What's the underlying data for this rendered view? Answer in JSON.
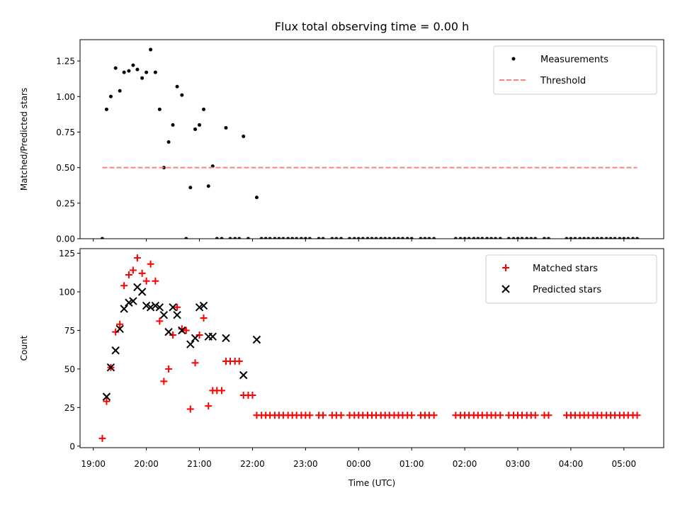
{
  "figure": {
    "title": "Flux total observing time = 0.00 h"
  },
  "colors": {
    "measurement": "#000000",
    "threshold": "#ff7f7f",
    "matched": "#ff0000",
    "predicted": "#000000"
  },
  "chart_data": [
    {
      "type": "scatter",
      "xlabel": "",
      "ylabel": "Matched/Predicted stars",
      "xlim": [
        18.75,
        29.75
      ],
      "ylim": [
        0,
        1.4
      ],
      "yticks": [
        0.0,
        0.25,
        0.5,
        0.75,
        1.0,
        1.25
      ],
      "ytick_labels": [
        "0.00",
        "0.25",
        "0.50",
        "0.75",
        "1.00",
        "1.25"
      ],
      "grid": false,
      "legend_position": "top-right",
      "series": [
        {
          "name": "Measurements",
          "marker": "dot",
          "points": [
            [
              19.17,
              0.0
            ],
            [
              19.25,
              0.91
            ],
            [
              19.33,
              1.0
            ],
            [
              19.42,
              1.2
            ],
            [
              19.5,
              1.04
            ],
            [
              19.58,
              1.17
            ],
            [
              19.67,
              1.18
            ],
            [
              19.75,
              1.22
            ],
            [
              19.83,
              1.19
            ],
            [
              19.92,
              1.13
            ],
            [
              20.0,
              1.17
            ],
            [
              20.08,
              1.33
            ],
            [
              20.17,
              1.17
            ],
            [
              20.25,
              0.91
            ],
            [
              20.33,
              0.5
            ],
            [
              20.42,
              0.68
            ],
            [
              20.5,
              0.8
            ],
            [
              20.58,
              1.07
            ],
            [
              20.67,
              1.01
            ],
            [
              20.75,
              0.0
            ],
            [
              20.83,
              0.36
            ],
            [
              20.92,
              0.77
            ],
            [
              21.0,
              0.8
            ],
            [
              21.08,
              0.91
            ],
            [
              21.17,
              0.37
            ],
            [
              21.25,
              0.51
            ],
            [
              21.33,
              0.0
            ],
            [
              21.42,
              0.0
            ],
            [
              21.5,
              0.78
            ],
            [
              21.58,
              0.0
            ],
            [
              21.67,
              0.0
            ],
            [
              21.75,
              0.0
            ],
            [
              21.83,
              0.72
            ],
            [
              21.92,
              0.0
            ],
            [
              22.08,
              0.29
            ],
            [
              22.17,
              0.0
            ],
            [
              22.25,
              0.0
            ],
            [
              22.33,
              0.0
            ],
            [
              22.42,
              0.0
            ],
            [
              22.5,
              0.0
            ],
            [
              22.58,
              0.0
            ],
            [
              22.67,
              0.0
            ],
            [
              22.75,
              0.0
            ],
            [
              22.83,
              0.0
            ],
            [
              22.92,
              0.0
            ],
            [
              23.0,
              0.0
            ],
            [
              23.08,
              0.0
            ],
            [
              23.25,
              0.0
            ],
            [
              23.33,
              0.0
            ],
            [
              23.5,
              0.0
            ],
            [
              23.58,
              0.0
            ],
            [
              23.67,
              0.0
            ],
            [
              23.83,
              0.0
            ],
            [
              23.92,
              0.0
            ],
            [
              24.0,
              0.0
            ],
            [
              24.08,
              0.0
            ],
            [
              24.17,
              0.0
            ],
            [
              24.25,
              0.0
            ],
            [
              24.33,
              0.0
            ],
            [
              24.42,
              0.0
            ],
            [
              24.5,
              0.0
            ],
            [
              24.58,
              0.0
            ],
            [
              24.67,
              0.0
            ],
            [
              24.75,
              0.0
            ],
            [
              24.83,
              0.0
            ],
            [
              24.92,
              0.0
            ],
            [
              25.0,
              0.0
            ],
            [
              25.17,
              0.0
            ],
            [
              25.25,
              0.0
            ],
            [
              25.33,
              0.0
            ],
            [
              25.42,
              0.0
            ],
            [
              25.83,
              0.0
            ],
            [
              25.92,
              0.0
            ],
            [
              26.0,
              0.0
            ],
            [
              26.08,
              0.0
            ],
            [
              26.17,
              0.0
            ],
            [
              26.25,
              0.0
            ],
            [
              26.33,
              0.0
            ],
            [
              26.42,
              0.0
            ],
            [
              26.5,
              0.0
            ],
            [
              26.58,
              0.0
            ],
            [
              26.67,
              0.0
            ],
            [
              26.83,
              0.0
            ],
            [
              26.92,
              0.0
            ],
            [
              27.0,
              0.0
            ],
            [
              27.08,
              0.0
            ],
            [
              27.17,
              0.0
            ],
            [
              27.25,
              0.0
            ],
            [
              27.33,
              0.0
            ],
            [
              27.5,
              0.0
            ],
            [
              27.58,
              0.0
            ],
            [
              27.92,
              0.0
            ],
            [
              28.0,
              0.0
            ],
            [
              28.08,
              0.0
            ],
            [
              28.17,
              0.0
            ],
            [
              28.25,
              0.0
            ],
            [
              28.33,
              0.0
            ],
            [
              28.42,
              0.0
            ],
            [
              28.5,
              0.0
            ],
            [
              28.58,
              0.0
            ],
            [
              28.67,
              0.0
            ],
            [
              28.75,
              0.0
            ],
            [
              28.83,
              0.0
            ],
            [
              28.92,
              0.0
            ],
            [
              29.0,
              0.0
            ],
            [
              29.08,
              0.0
            ],
            [
              29.17,
              0.0
            ],
            [
              29.25,
              0.0
            ]
          ]
        },
        {
          "name": "Threshold",
          "marker": "dashed-line",
          "points": [
            [
              19.17,
              0.5
            ],
            [
              29.25,
              0.5
            ]
          ]
        }
      ]
    },
    {
      "type": "scatter",
      "xlabel": "Time (UTC)",
      "ylabel": "Count",
      "xlim": [
        18.75,
        29.75
      ],
      "ylim": [
        -1,
        128
      ],
      "yticks": [
        0,
        25,
        50,
        75,
        100,
        125
      ],
      "ytick_labels": [
        "0",
        "25",
        "50",
        "75",
        "100",
        "125"
      ],
      "xticks": [
        19,
        20,
        21,
        22,
        23,
        24,
        25,
        26,
        27,
        28,
        29
      ],
      "xtick_labels": [
        "19:00",
        "20:00",
        "21:00",
        "22:00",
        "23:00",
        "00:00",
        "01:00",
        "02:00",
        "03:00",
        "04:00",
        "05:00"
      ],
      "grid": false,
      "legend_position": "top-right",
      "series": [
        {
          "name": "Matched stars",
          "marker": "plus",
          "points": [
            [
              19.17,
              5
            ],
            [
              19.25,
              29
            ],
            [
              19.33,
              51
            ],
            [
              19.42,
              74
            ],
            [
              19.5,
              79
            ],
            [
              19.58,
              104
            ],
            [
              19.67,
              111
            ],
            [
              19.75,
              114
            ],
            [
              19.83,
              122
            ],
            [
              19.92,
              112
            ],
            [
              20.0,
              107
            ],
            [
              20.08,
              118
            ],
            [
              20.17,
              107
            ],
            [
              20.25,
              81
            ],
            [
              20.33,
              42
            ],
            [
              20.42,
              50
            ],
            [
              20.5,
              72
            ],
            [
              20.58,
              90
            ],
            [
              20.67,
              76
            ],
            [
              20.75,
              75
            ],
            [
              20.83,
              24
            ],
            [
              20.92,
              54
            ],
            [
              21.0,
              72
            ],
            [
              21.08,
              83
            ],
            [
              21.17,
              26
            ],
            [
              21.25,
              36
            ],
            [
              21.33,
              36
            ],
            [
              21.42,
              36
            ],
            [
              21.5,
              55
            ],
            [
              21.58,
              55
            ],
            [
              21.67,
              55
            ],
            [
              21.75,
              55
            ],
            [
              21.83,
              33
            ],
            [
              21.92,
              33
            ],
            [
              22.0,
              33
            ],
            [
              22.08,
              20
            ],
            [
              22.17,
              20
            ],
            [
              22.25,
              20
            ],
            [
              22.33,
              20
            ],
            [
              22.42,
              20
            ],
            [
              22.5,
              20
            ],
            [
              22.58,
              20
            ],
            [
              22.67,
              20
            ],
            [
              22.75,
              20
            ],
            [
              22.83,
              20
            ],
            [
              22.92,
              20
            ],
            [
              23.0,
              20
            ],
            [
              23.08,
              20
            ],
            [
              23.25,
              20
            ],
            [
              23.33,
              20
            ],
            [
              23.5,
              20
            ],
            [
              23.58,
              20
            ],
            [
              23.67,
              20
            ],
            [
              23.83,
              20
            ],
            [
              23.92,
              20
            ],
            [
              24.0,
              20
            ],
            [
              24.08,
              20
            ],
            [
              24.17,
              20
            ],
            [
              24.25,
              20
            ],
            [
              24.33,
              20
            ],
            [
              24.42,
              20
            ],
            [
              24.5,
              20
            ],
            [
              24.58,
              20
            ],
            [
              24.67,
              20
            ],
            [
              24.75,
              20
            ],
            [
              24.83,
              20
            ],
            [
              24.92,
              20
            ],
            [
              25.0,
              20
            ],
            [
              25.17,
              20
            ],
            [
              25.25,
              20
            ],
            [
              25.33,
              20
            ],
            [
              25.42,
              20
            ],
            [
              25.83,
              20
            ],
            [
              25.92,
              20
            ],
            [
              26.0,
              20
            ],
            [
              26.08,
              20
            ],
            [
              26.17,
              20
            ],
            [
              26.25,
              20
            ],
            [
              26.33,
              20
            ],
            [
              26.42,
              20
            ],
            [
              26.5,
              20
            ],
            [
              26.58,
              20
            ],
            [
              26.67,
              20
            ],
            [
              26.83,
              20
            ],
            [
              26.92,
              20
            ],
            [
              27.0,
              20
            ],
            [
              27.08,
              20
            ],
            [
              27.17,
              20
            ],
            [
              27.25,
              20
            ],
            [
              27.33,
              20
            ],
            [
              27.5,
              20
            ],
            [
              27.58,
              20
            ],
            [
              27.92,
              20
            ],
            [
              28.0,
              20
            ],
            [
              28.08,
              20
            ],
            [
              28.17,
              20
            ],
            [
              28.25,
              20
            ],
            [
              28.33,
              20
            ],
            [
              28.42,
              20
            ],
            [
              28.5,
              20
            ],
            [
              28.58,
              20
            ],
            [
              28.67,
              20
            ],
            [
              28.75,
              20
            ],
            [
              28.83,
              20
            ],
            [
              28.92,
              20
            ],
            [
              29.0,
              20
            ],
            [
              29.08,
              20
            ],
            [
              29.17,
              20
            ],
            [
              29.25,
              20
            ]
          ]
        },
        {
          "name": "Predicted stars",
          "marker": "x",
          "points": [
            [
              19.25,
              32
            ],
            [
              19.33,
              51
            ],
            [
              19.42,
              62
            ],
            [
              19.5,
              76
            ],
            [
              19.58,
              89
            ],
            [
              19.67,
              93
            ],
            [
              19.75,
              94
            ],
            [
              19.83,
              103
            ],
            [
              19.92,
              100
            ],
            [
              20.0,
              91
            ],
            [
              20.08,
              90
            ],
            [
              20.17,
              91
            ],
            [
              20.25,
              90
            ],
            [
              20.33,
              85
            ],
            [
              20.42,
              74
            ],
            [
              20.5,
              90
            ],
            [
              20.58,
              85
            ],
            [
              20.67,
              75
            ],
            [
              20.83,
              66
            ],
            [
              20.92,
              70
            ],
            [
              21.0,
              90
            ],
            [
              21.08,
              91
            ],
            [
              21.17,
              71
            ],
            [
              21.25,
              71
            ],
            [
              21.5,
              70
            ],
            [
              21.83,
              46
            ],
            [
              22.08,
              69
            ]
          ]
        }
      ]
    }
  ]
}
